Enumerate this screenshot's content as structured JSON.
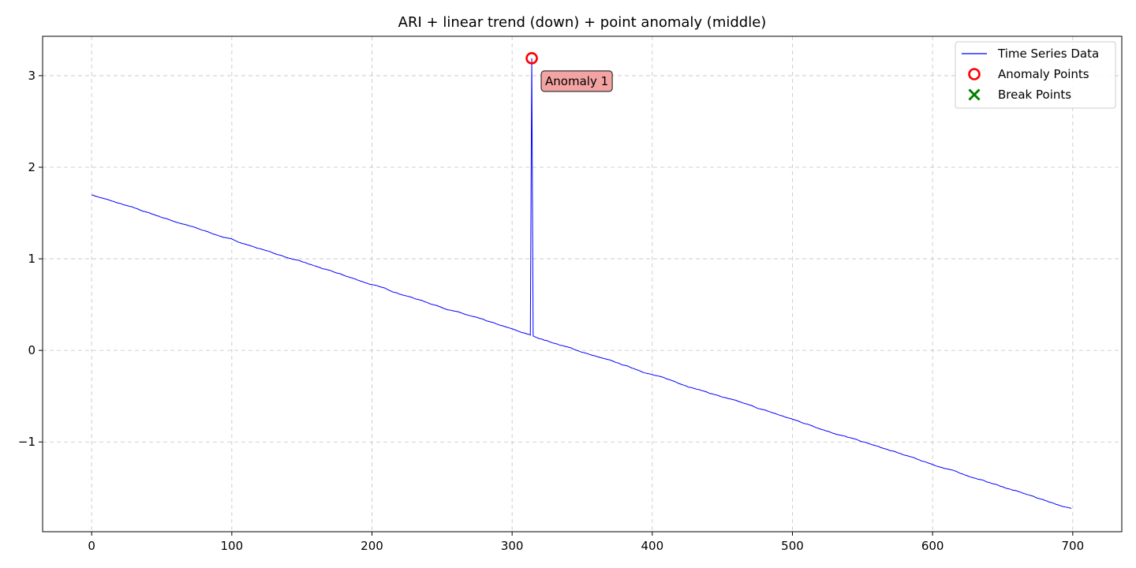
{
  "chart_data": {
    "type": "line",
    "title": "ARI + linear trend (down) + point anomaly (middle)",
    "xlabel": "",
    "ylabel": "",
    "xlim": [
      -35,
      735
    ],
    "ylim": [
      -1.98,
      3.43
    ],
    "xticks": [
      0,
      100,
      200,
      300,
      400,
      500,
      600,
      700
    ],
    "yticks": [
      -1,
      0,
      1,
      2,
      3
    ],
    "ytick_labels": [
      "−1",
      "0",
      "1",
      "2",
      "3"
    ],
    "grid": true,
    "legend_position": "top-right",
    "series": [
      {
        "name": "Time Series Data",
        "color": "#0000ff",
        "x_start": 0,
        "x_end": 699,
        "trend_start": 1.7,
        "trend_end": -1.73,
        "anomaly_x": 314,
        "anomaly_y": 3.19
      }
    ],
    "anomaly_points": [
      {
        "x": 314,
        "y": 3.19,
        "color": "#ff0000"
      }
    ],
    "break_points": [],
    "annotations": [
      {
        "text": "Anomaly 1",
        "x": 314,
        "y": 3.19
      }
    ],
    "legend": [
      {
        "label": "Time Series Data",
        "kind": "line",
        "color": "#0000ff"
      },
      {
        "label": "Anomaly Points",
        "kind": "circle",
        "color": "#ff0000"
      },
      {
        "label": "Break Points",
        "kind": "cross",
        "color": "#008000"
      }
    ]
  }
}
